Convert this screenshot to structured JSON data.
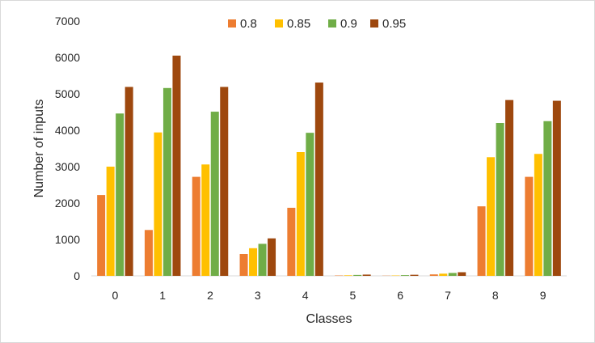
{
  "chart_data": {
    "type": "bar",
    "title": "",
    "xlabel": "Classes",
    "ylabel": "Number of inputs",
    "categories": [
      "0",
      "1",
      "2",
      "3",
      "4",
      "5",
      "6",
      "7",
      "8",
      "9"
    ],
    "ylim": [
      0,
      7000
    ],
    "yticks": [
      "0",
      "1000",
      "2000",
      "3000",
      "4000",
      "5000",
      "6000",
      "7000"
    ],
    "grid": false,
    "legend_position": "top-center",
    "series": [
      {
        "name": "0.8",
        "color": "#ED7D31",
        "values": [
          2220,
          1260,
          2720,
          600,
          1870,
          10,
          5,
          40,
          1910,
          2720
        ]
      },
      {
        "name": "0.85",
        "color": "#FFC000",
        "values": [
          3000,
          3940,
          3060,
          760,
          3400,
          15,
          10,
          60,
          3260,
          3350
        ]
      },
      {
        "name": "0.9",
        "color": "#70AD47",
        "values": [
          4460,
          5160,
          4510,
          880,
          3930,
          25,
          20,
          80,
          4200,
          4250
        ]
      },
      {
        "name": "0.95",
        "color": "#9E480E",
        "values": [
          5190,
          6050,
          5190,
          1030,
          5310,
          35,
          30,
          100,
          4830,
          4810
        ]
      }
    ]
  }
}
